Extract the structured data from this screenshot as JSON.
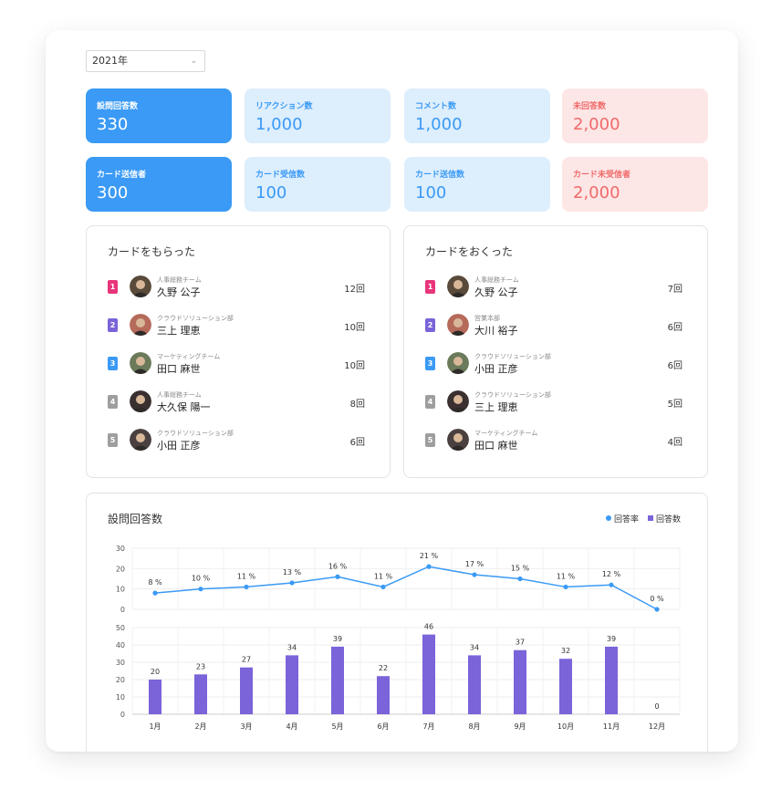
{
  "year_select": {
    "value": "2021年"
  },
  "stats": [
    {
      "label": "設問回答数",
      "value": "330",
      "style": "blue"
    },
    {
      "label": "リアクション数",
      "value": "1,000",
      "style": "light"
    },
    {
      "label": "コメント数",
      "value": "1,000",
      "style": "light"
    },
    {
      "label": "未回答数",
      "value": "2,000",
      "style": "pink"
    },
    {
      "label": "カード送信者",
      "value": "300",
      "style": "blue"
    },
    {
      "label": "カード受信数",
      "value": "100",
      "style": "light"
    },
    {
      "label": "カード送信数",
      "value": "100",
      "style": "light"
    },
    {
      "label": "カード未受信者",
      "value": "2,000",
      "style": "pink"
    }
  ],
  "received": {
    "title": "カードをもらった",
    "rows": [
      {
        "rank": "1",
        "dept": "人事総務チーム",
        "name": "久野 公子",
        "count": "12回"
      },
      {
        "rank": "2",
        "dept": "クラウドソリューション部",
        "name": "三上 理恵",
        "count": "10回"
      },
      {
        "rank": "3",
        "dept": "マーケティングチーム",
        "name": "田口 麻世",
        "count": "10回"
      },
      {
        "rank": "4",
        "dept": "人事総務チーム",
        "name": "大久保 陽一",
        "count": "8回"
      },
      {
        "rank": "5",
        "dept": "クラウドソリューション部",
        "name": "小田 正彦",
        "count": "6回"
      }
    ]
  },
  "sent": {
    "title": "カードをおくった",
    "rows": [
      {
        "rank": "1",
        "dept": "人事総務チーム",
        "name": "久野 公子",
        "count": "7回"
      },
      {
        "rank": "2",
        "dept": "営業本部",
        "name": "大川 裕子",
        "count": "6回"
      },
      {
        "rank": "3",
        "dept": "クラウドソリューション部",
        "name": "小田 正彦",
        "count": "6回"
      },
      {
        "rank": "4",
        "dept": "クラウドソリューション部",
        "name": "三上 理恵",
        "count": "5回"
      },
      {
        "rank": "5",
        "dept": "マーケティングチーム",
        "name": "田口 麻世",
        "count": "4回"
      }
    ]
  },
  "rank_colors": [
    "#e8357a",
    "#7b63d9",
    "#3a9af5",
    "#9e9e9e",
    "#9e9e9e"
  ],
  "chart_panel": {
    "title": "設問回答数",
    "legend_rate": "回答率",
    "legend_count": "回答数"
  },
  "chart_data": {
    "type": "line+bar",
    "categories": [
      "1月",
      "2月",
      "3月",
      "4月",
      "5月",
      "6月",
      "7月",
      "8月",
      "9月",
      "10月",
      "11月",
      "12月"
    ],
    "series": [
      {
        "name": "回答率",
        "type": "line",
        "values": [
          8,
          10,
          11,
          13,
          16,
          11,
          21,
          17,
          15,
          11,
          12,
          0
        ],
        "label_suffix": " %",
        "ylim": [
          0,
          30
        ],
        "yticks": [
          0,
          10,
          20,
          30
        ],
        "color": "#3a9af5"
      },
      {
        "name": "回答数",
        "type": "bar",
        "values": [
          20,
          23,
          27,
          34,
          39,
          22,
          46,
          34,
          37,
          32,
          39,
          0
        ],
        "ylim": [
          0,
          50
        ],
        "yticks": [
          0,
          10,
          20,
          30,
          40,
          50
        ],
        "color": "#7b63d9"
      }
    ],
    "grid": true,
    "legend": "top-right"
  }
}
